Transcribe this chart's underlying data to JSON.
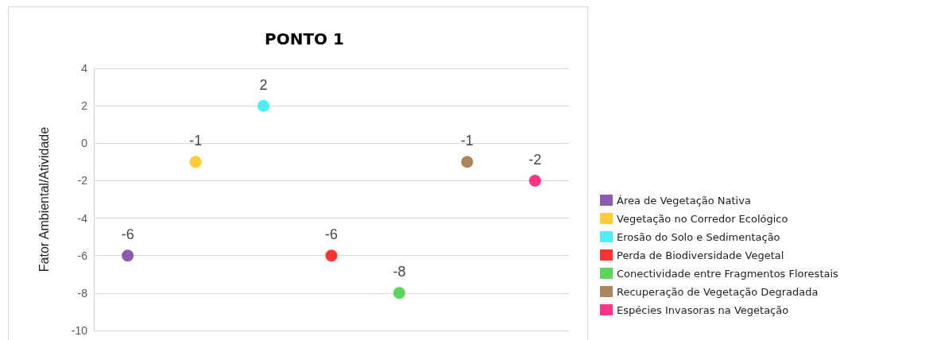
{
  "chart_data": {
    "type": "scatter",
    "title": "PONTO 1",
    "ylabel": "Fator Ambiental/Atividade",
    "categories": [
      null,
      null,
      null,
      null,
      null,
      null,
      null
    ],
    "series": [
      {
        "name": "Área de Vegetação Nativa",
        "color": "#7030a0",
        "values": [
          -6,
          null,
          null,
          null,
          null,
          null,
          null
        ]
      },
      {
        "name": "Vegetação no Corredor Ecológico",
        "color": "#ffc000",
        "values": [
          null,
          -1,
          null,
          null,
          null,
          null,
          null
        ]
      },
      {
        "name": "Erosão do Solo e Sedimentação",
        "color": "#22eaf2",
        "values": [
          null,
          null,
          2,
          null,
          null,
          null,
          null
        ]
      },
      {
        "name": "Perda de Biodiversidade Vegetal",
        "color": "#ff0000",
        "values": [
          null,
          null,
          null,
          -6,
          null,
          null,
          null
        ]
      },
      {
        "name": "Conectividade entre Fragmentos Florestais",
        "color": "#33cc33",
        "values": [
          null,
          null,
          null,
          null,
          -8,
          null,
          null
        ]
      },
      {
        "name": "Recuperação de Vegetação Degradada",
        "color": "#996633",
        "values": [
          null,
          null,
          null,
          null,
          null,
          -1,
          null
        ]
      },
      {
        "name": "Espécies Invasoras na Vegetação",
        "color": "#ff0066",
        "values": [
          null,
          null,
          null,
          null,
          null,
          null,
          -2
        ]
      }
    ],
    "ylim": [
      -10,
      4
    ],
    "yticks": [
      -10,
      -8,
      -6,
      -4,
      -2,
      0,
      2,
      4
    ],
    "grid": "y",
    "legend": "right",
    "marker": "circle",
    "data_labels": true,
    "tick_labels": "y"
  }
}
